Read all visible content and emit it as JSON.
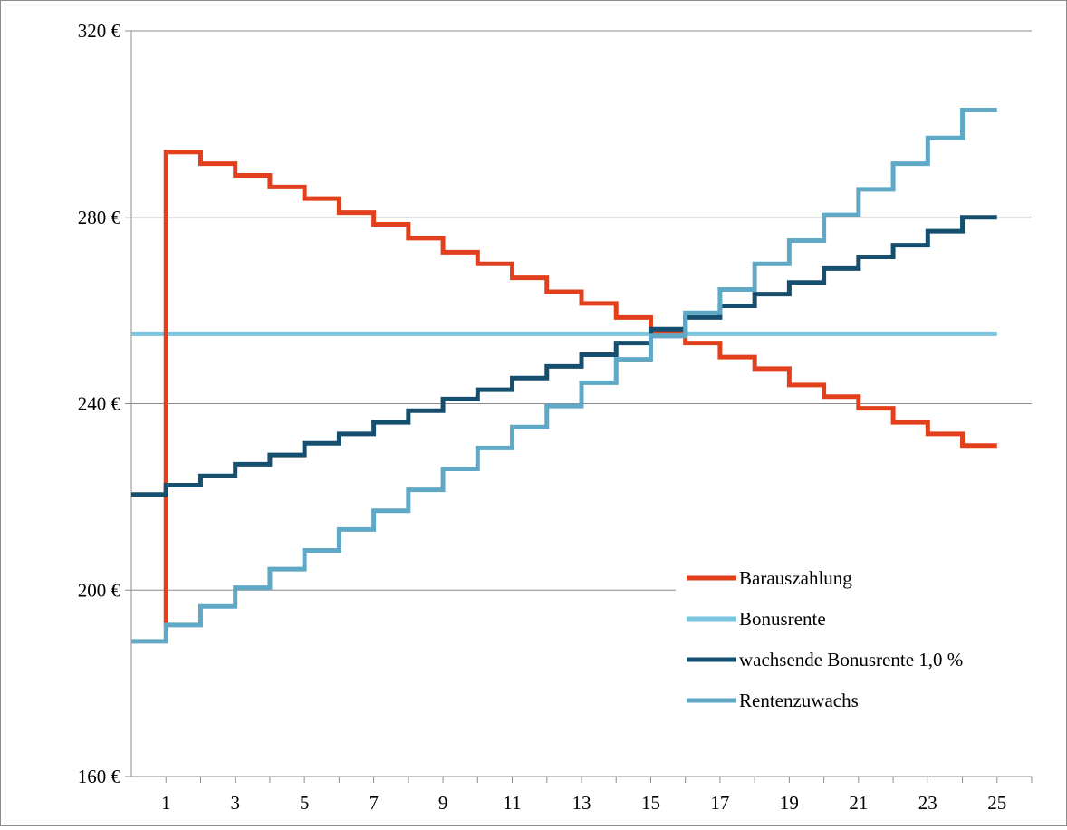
{
  "chart_data": {
    "type": "line",
    "step": true,
    "x_ticks": [
      "1",
      "3",
      "5",
      "7",
      "9",
      "11",
      "13",
      "15",
      "17",
      "19",
      "21",
      "23",
      "25"
    ],
    "y_ticks": [
      "160 €",
      "200 €",
      "240 €",
      "280 €",
      "320 €"
    ],
    "ylim": [
      160,
      320
    ],
    "xlim": [
      0,
      26
    ],
    "grid": true,
    "legend_position": "bottom-right",
    "series": [
      {
        "name": "Barauszahlung",
        "color": "#e2401c",
        "x": [
          1,
          2,
          3,
          4,
          5,
          6,
          7,
          8,
          9,
          10,
          11,
          12,
          13,
          14,
          15,
          16,
          17,
          18,
          19,
          20,
          21,
          22,
          23,
          24,
          25
        ],
        "values": [
          294,
          291.5,
          289,
          286.5,
          284,
          281,
          278.5,
          275.5,
          272.5,
          270,
          267,
          264,
          261.5,
          258.5,
          255.5,
          253,
          250,
          247.5,
          244,
          241.5,
          239,
          236,
          233.5,
          231,
          231
        ],
        "start_value": 192.5
      },
      {
        "name": "Bonusrente",
        "color": "#79c4df",
        "flat_value": 255,
        "x_start": 0,
        "x_end": 25
      },
      {
        "name": "wachsende Bonusrente 1,0 %",
        "color": "#164f6d",
        "x": [
          0,
          1,
          2,
          3,
          4,
          5,
          6,
          7,
          8,
          9,
          10,
          11,
          12,
          13,
          14,
          15,
          16,
          17,
          18,
          19,
          20,
          21,
          22,
          23,
          24,
          25
        ],
        "values": [
          220.5,
          222.5,
          224.5,
          227,
          229,
          231.5,
          233.5,
          236,
          238.5,
          241,
          243,
          245.5,
          248,
          250.5,
          253,
          256,
          258.5,
          261,
          263.5,
          266,
          269,
          271.5,
          274,
          277,
          280,
          280
        ]
      },
      {
        "name": "Rentenzuwachs",
        "color": "#5fa9c7",
        "x": [
          0,
          1,
          2,
          3,
          4,
          5,
          6,
          7,
          8,
          9,
          10,
          11,
          12,
          13,
          14,
          15,
          16,
          17,
          18,
          19,
          20,
          21,
          22,
          23,
          24,
          25
        ],
        "values": [
          189,
          192.5,
          196.5,
          200.5,
          204.5,
          208.5,
          213,
          217,
          221.5,
          226,
          230.5,
          235,
          239.5,
          244.5,
          249.5,
          254.5,
          259.5,
          264.5,
          270,
          275,
          280.5,
          286,
          291.5,
          297,
          303,
          303
        ]
      }
    ]
  }
}
